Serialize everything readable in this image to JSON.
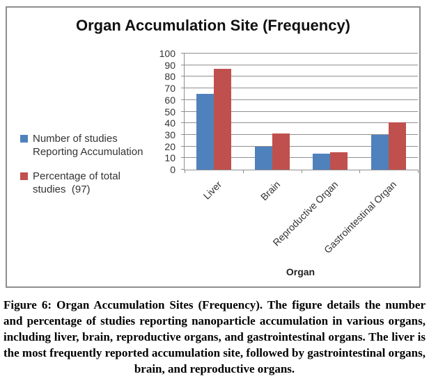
{
  "chart": {
    "title": "Organ Accumulation Site (Frequency)",
    "x_axis_title": "Organ"
  },
  "chart_data": {
    "type": "bar",
    "title": "Organ Accumulation Site (Frequency)",
    "categories": [
      "Liver",
      "Brain",
      "Reproductive Organ",
      "Gastrointestinal Organ"
    ],
    "series": [
      {
        "name": "Number of studies Reporting Accumulation",
        "color": "#4F81BD",
        "values": [
          65,
          20,
          14,
          30
        ]
      },
      {
        "name": "Percentage of total studies  (97)",
        "color": "#C0504D",
        "values": [
          87,
          31,
          15,
          41
        ]
      }
    ],
    "xlabel": "Organ",
    "ylabel": "",
    "ylim": [
      0,
      100
    ],
    "ytick_step": 10,
    "grid": true,
    "legend_position": "left"
  },
  "caption": "Figure 6: Organ Accumulation Sites (Frequency). The figure details the number and percentage of studies reporting nanoparticle accumulation in various organs, including liver, brain, reproductive organs, and gastrointestinal organs. The liver is the most frequently reported accumulation site, followed by gastrointestinal organs, brain, and reproductive organs."
}
